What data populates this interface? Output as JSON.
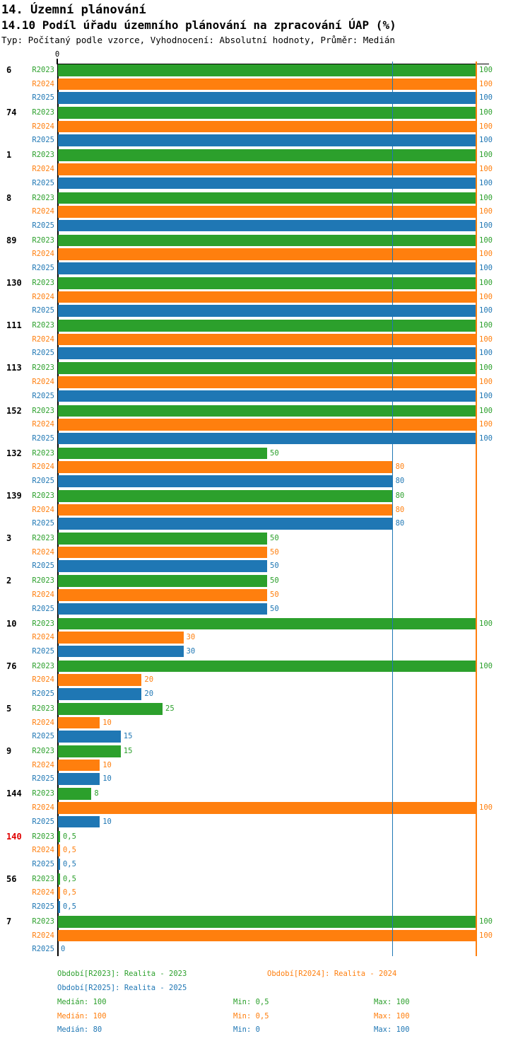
{
  "header": {
    "title": "14. Územní plánování",
    "subtitle": "14.10 Podíl úřadu územního plánování na zpracování ÚAP (%)",
    "meta": "Typ: Počítaný podle vzorce, Vyhodnocení: Absolutní hodnoty, Průměr: Medián"
  },
  "colors": {
    "r2023": "#2ca02c",
    "r2024": "#ff7f0e",
    "r2025": "#1f77b4",
    "highlight_category": "#e00000",
    "axis": "#000000"
  },
  "chart_data": {
    "type": "bar",
    "orientation": "horizontal",
    "x_axis": {
      "min": 0,
      "max": 100,
      "zero_label": "0",
      "grid": false
    },
    "series_labels": [
      "R2023",
      "R2024",
      "R2025"
    ],
    "median_lines": [
      {
        "series": "R2023",
        "value": 100
      },
      {
        "series": "R2025",
        "value": 80
      },
      {
        "series": "R2024",
        "value": 100
      }
    ],
    "rows": [
      {
        "category": "6",
        "highlight": false,
        "values": [
          100,
          100,
          100
        ],
        "value_labels": [
          "100",
          "100",
          "100"
        ]
      },
      {
        "category": "74",
        "highlight": false,
        "values": [
          100,
          100,
          100
        ],
        "value_labels": [
          "100",
          "100",
          "100"
        ]
      },
      {
        "category": "1",
        "highlight": false,
        "values": [
          100,
          100,
          100
        ],
        "value_labels": [
          "100",
          "100",
          "100"
        ]
      },
      {
        "category": "8",
        "highlight": false,
        "values": [
          100,
          100,
          100
        ],
        "value_labels": [
          "100",
          "100",
          "100"
        ]
      },
      {
        "category": "89",
        "highlight": false,
        "values": [
          100,
          100,
          100
        ],
        "value_labels": [
          "100",
          "100",
          "100"
        ]
      },
      {
        "category": "130",
        "highlight": false,
        "values": [
          100,
          100,
          100
        ],
        "value_labels": [
          "100",
          "100",
          "100"
        ]
      },
      {
        "category": "111",
        "highlight": false,
        "values": [
          100,
          100,
          100
        ],
        "value_labels": [
          "100",
          "100",
          "100"
        ]
      },
      {
        "category": "113",
        "highlight": false,
        "values": [
          100,
          100,
          100
        ],
        "value_labels": [
          "100",
          "100",
          "100"
        ]
      },
      {
        "category": "152",
        "highlight": false,
        "values": [
          100,
          100,
          100
        ],
        "value_labels": [
          "100",
          "100",
          "100"
        ]
      },
      {
        "category": "132",
        "highlight": false,
        "values": [
          50,
          80,
          80
        ],
        "value_labels": [
          "50",
          "80",
          "80"
        ]
      },
      {
        "category": "139",
        "highlight": false,
        "values": [
          80,
          80,
          80
        ],
        "value_labels": [
          "80",
          "80",
          "80"
        ]
      },
      {
        "category": "3",
        "highlight": false,
        "values": [
          50,
          50,
          50
        ],
        "value_labels": [
          "50",
          "50",
          "50"
        ]
      },
      {
        "category": "2",
        "highlight": false,
        "values": [
          50,
          50,
          50
        ],
        "value_labels": [
          "50",
          "50",
          "50"
        ]
      },
      {
        "category": "10",
        "highlight": false,
        "values": [
          100,
          30,
          30
        ],
        "value_labels": [
          "100",
          "30",
          "30"
        ]
      },
      {
        "category": "76",
        "highlight": false,
        "values": [
          100,
          20,
          20
        ],
        "value_labels": [
          "100",
          "20",
          "20"
        ]
      },
      {
        "category": "5",
        "highlight": false,
        "values": [
          25,
          10,
          15
        ],
        "value_labels": [
          "25",
          "10",
          "15"
        ]
      },
      {
        "category": "9",
        "highlight": false,
        "values": [
          15,
          10,
          10
        ],
        "value_labels": [
          "15",
          "10",
          "10"
        ]
      },
      {
        "category": "144",
        "highlight": false,
        "values": [
          8,
          100,
          10
        ],
        "value_labels": [
          "8",
          "100",
          "10"
        ]
      },
      {
        "category": "140",
        "highlight": true,
        "values": [
          0.5,
          0.5,
          0.5
        ],
        "value_labels": [
          "0,5",
          "0,5",
          "0,5"
        ]
      },
      {
        "category": "56",
        "highlight": false,
        "values": [
          0.5,
          0.5,
          0.5
        ],
        "value_labels": [
          "0,5",
          "0,5",
          "0,5"
        ]
      },
      {
        "category": "7",
        "highlight": false,
        "values": [
          100,
          100,
          0
        ],
        "value_labels": [
          "100",
          "100",
          "0"
        ]
      }
    ]
  },
  "legend": {
    "period_r2023": "Období[R2023]: Realita - 2023",
    "period_r2024": "Období[R2024]: Realita - 2024",
    "period_r2025": "Období[R2025]: Realita - 2025"
  },
  "stats": [
    {
      "median": "Medián: 100",
      "min": "Min: 0,5",
      "max": "Max: 100"
    },
    {
      "median": "Medián: 100",
      "min": "Min: 0,5",
      "max": "Max: 100"
    },
    {
      "median": "Medián: 80",
      "min": "Min: 0",
      "max": "Max: 100"
    }
  ]
}
